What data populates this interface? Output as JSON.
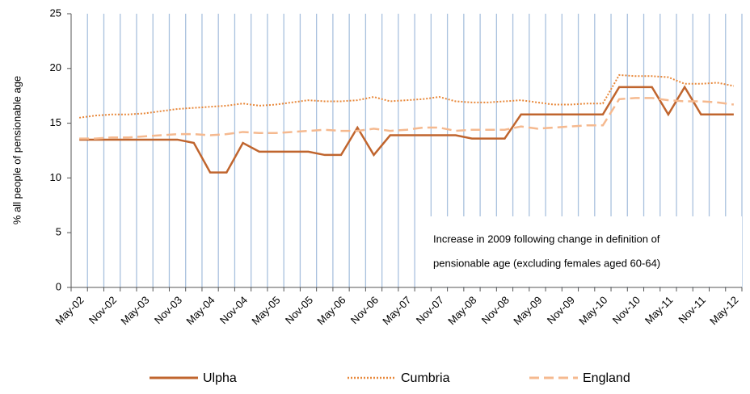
{
  "chart_data": {
    "type": "line",
    "y_label": "% all people of pensionable age",
    "categories": [
      "May-02",
      null,
      "Nov-02",
      null,
      "May-03",
      null,
      "Nov-03",
      null,
      "May-04",
      null,
      "Nov-04",
      null,
      "May-05",
      null,
      "Nov-05",
      null,
      "May-06",
      null,
      "Nov-06",
      null,
      "May-07",
      null,
      "Nov-07",
      null,
      "May-08",
      null,
      "Nov-08",
      null,
      "May-09",
      null,
      "Nov-09",
      null,
      "May-10",
      null,
      "Nov-10",
      null,
      "May-11",
      null,
      "Nov-11",
      null,
      "May-12"
    ],
    "series": [
      {
        "name": "Ulpha",
        "color": "#c0652e",
        "dash": "solid",
        "values": [
          13.5,
          13.5,
          13.5,
          13.5,
          13.5,
          13.5,
          13.5,
          13.2,
          10.5,
          10.5,
          13.2,
          12.4,
          12.4,
          12.4,
          12.4,
          12.1,
          12.1,
          14.6,
          12.1,
          13.9,
          13.9,
          13.9,
          13.9,
          13.9,
          13.6,
          13.6,
          13.6,
          15.8,
          15.8,
          15.8,
          15.8,
          15.8,
          15.8,
          18.3,
          18.3,
          18.3,
          15.8,
          18.3,
          15.8,
          15.8,
          15.8
        ]
      },
      {
        "name": "Cumbria",
        "color": "#e8883a",
        "dash": "dotted",
        "values": [
          15.5,
          15.7,
          15.8,
          15.8,
          15.9,
          16.1,
          16.3,
          16.4,
          16.5,
          16.6,
          16.8,
          16.6,
          16.7,
          16.9,
          17.1,
          17.0,
          17.0,
          17.1,
          17.4,
          17.0,
          17.1,
          17.2,
          17.4,
          17.0,
          16.9,
          16.9,
          17.0,
          17.1,
          16.9,
          16.7,
          16.7,
          16.8,
          16.8,
          19.4,
          19.3,
          19.3,
          19.2,
          18.6,
          18.6,
          18.7,
          18.4
        ]
      },
      {
        "name": "England",
        "color": "#f5b98f",
        "dash": "dashed",
        "values": [
          13.6,
          13.6,
          13.7,
          13.7,
          13.8,
          13.9,
          14.0,
          14.0,
          13.9,
          14.0,
          14.2,
          14.1,
          14.1,
          14.2,
          14.3,
          14.4,
          14.3,
          14.3,
          14.5,
          14.3,
          14.4,
          14.6,
          14.6,
          14.3,
          14.4,
          14.4,
          14.4,
          14.7,
          14.5,
          14.6,
          14.7,
          14.8,
          14.8,
          17.2,
          17.3,
          17.3,
          17.1,
          17.0,
          17.0,
          16.9,
          16.7
        ]
      }
    ],
    "ylim": [
      0,
      25
    ],
    "yticks": [
      0,
      5,
      10,
      15,
      20,
      25
    ],
    "x_grid": true,
    "grid_color": "#a9c1de",
    "annotation": [
      "Increase in 2009 following change in definition of",
      "pensionable age (excluding females aged 60-64)"
    ]
  }
}
